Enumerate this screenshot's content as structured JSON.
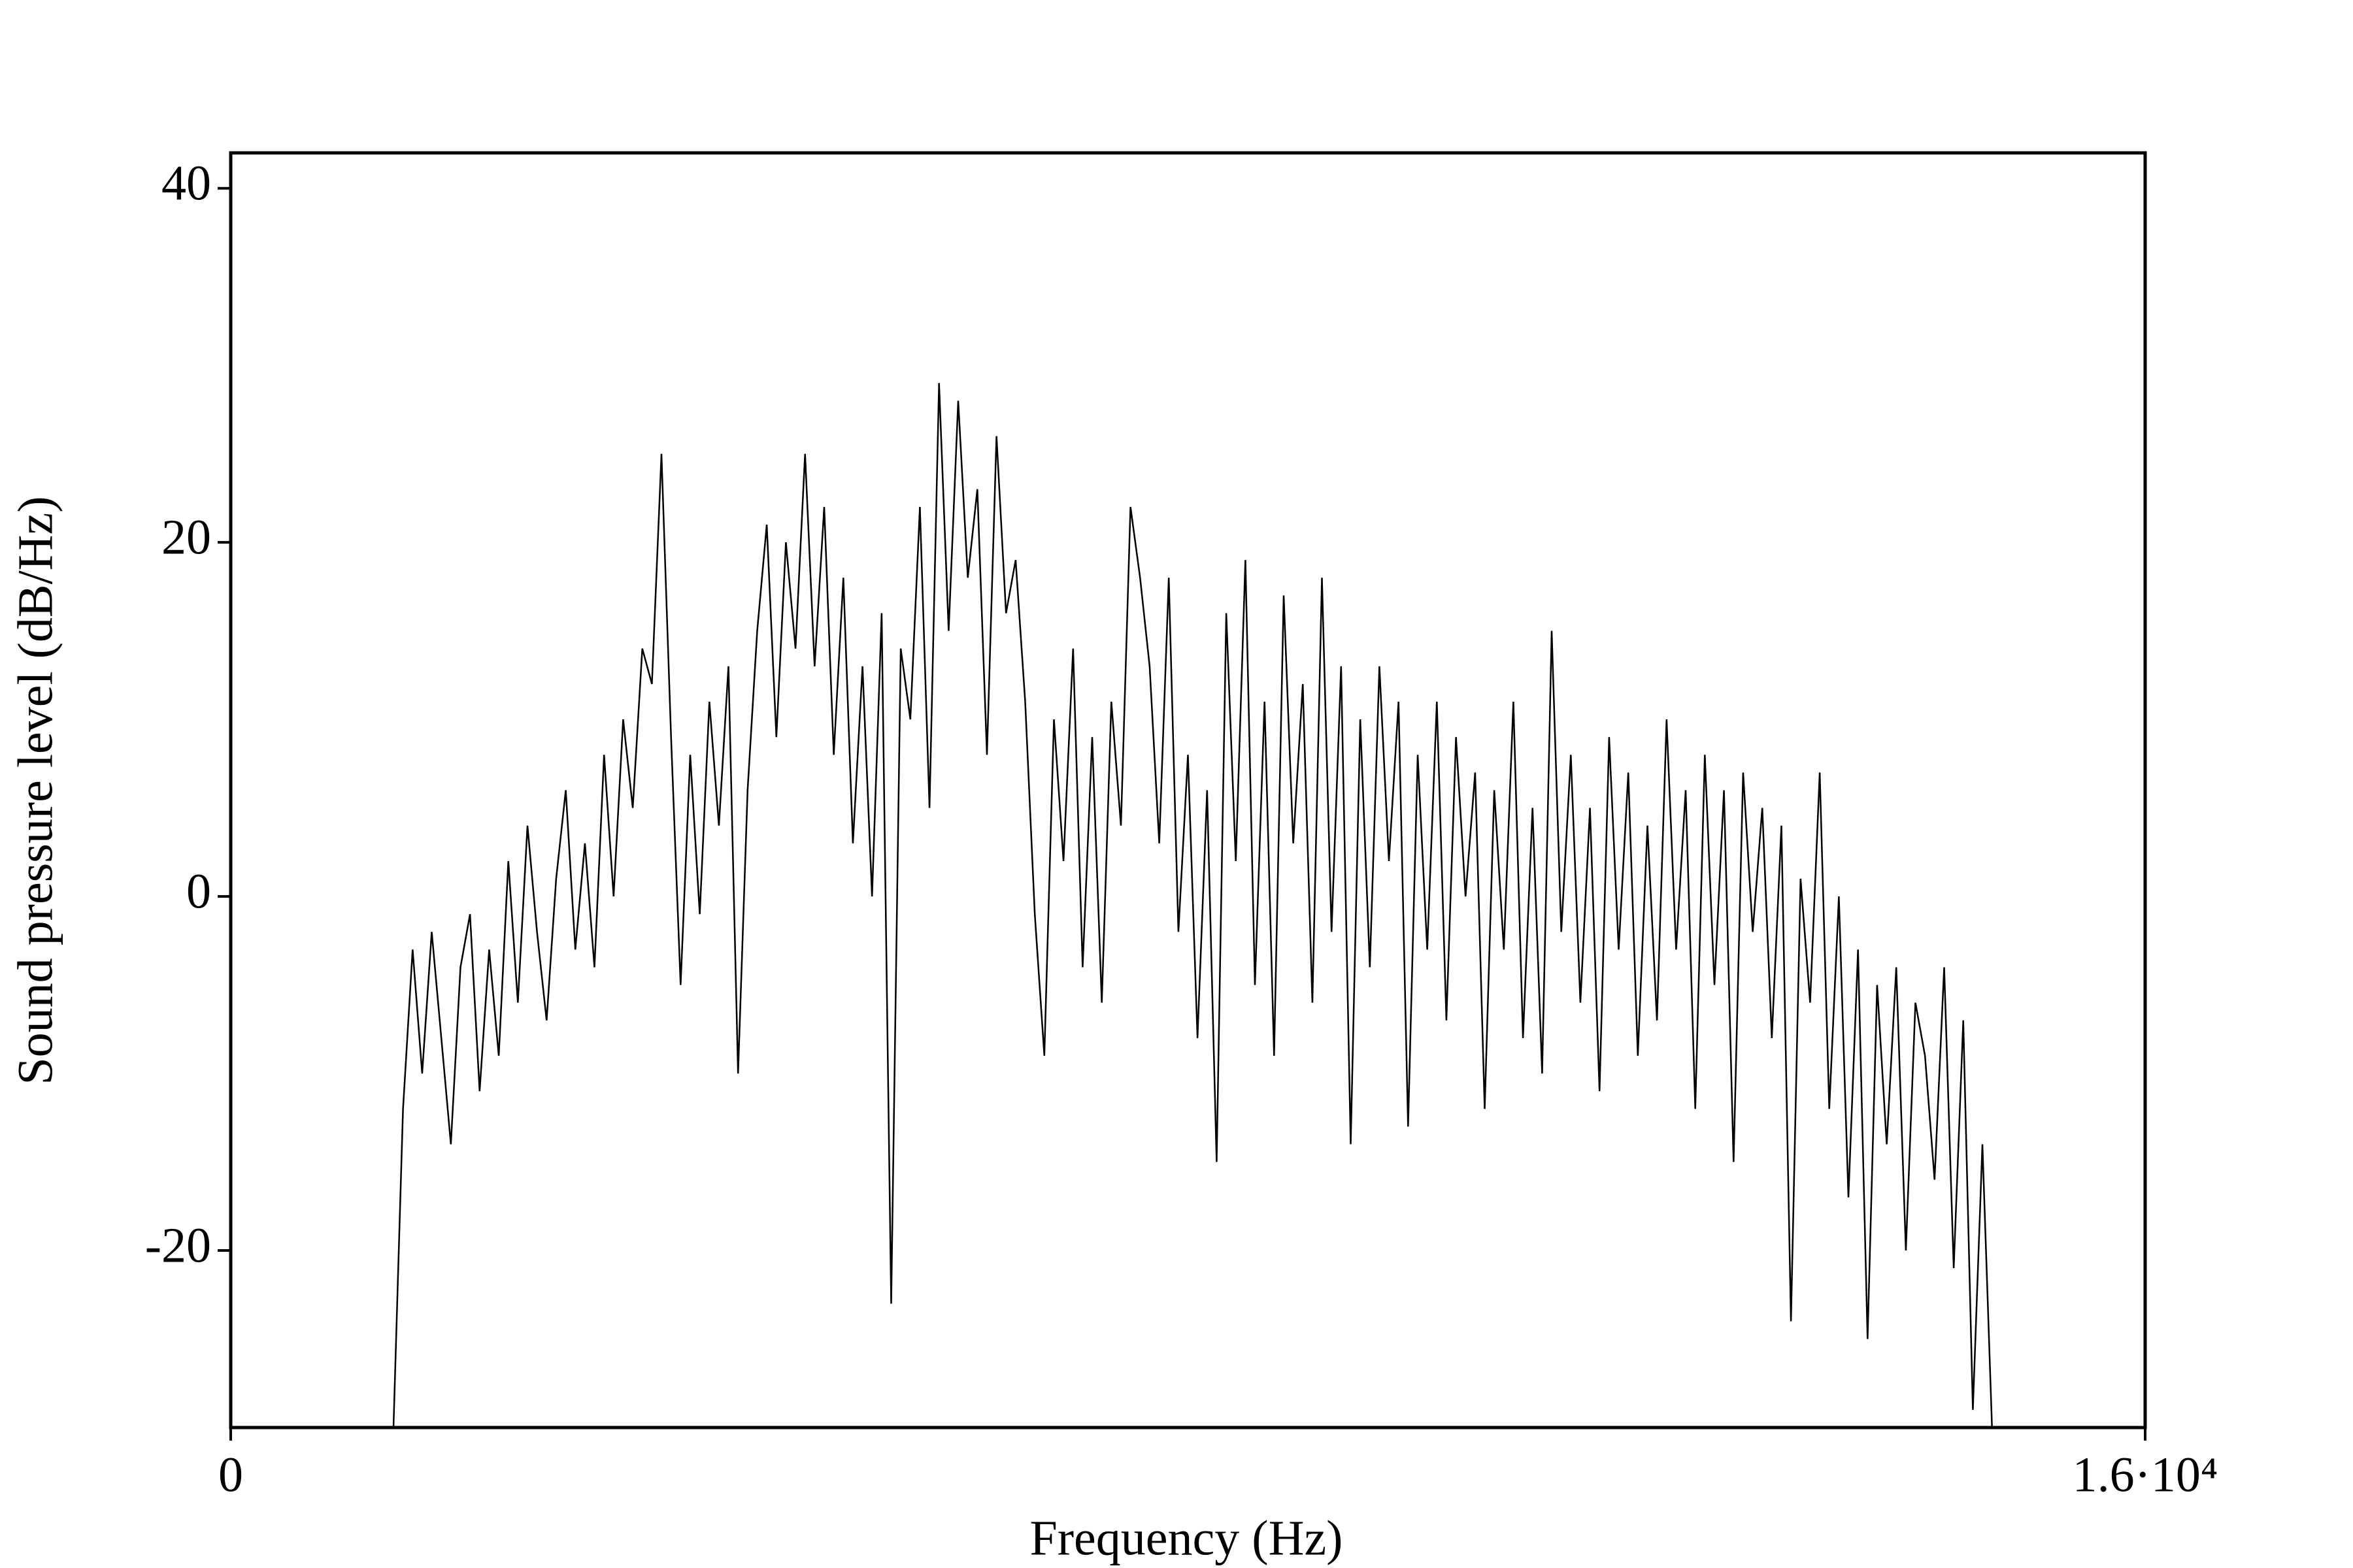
{
  "chart_data": {
    "type": "line",
    "x_label": "Frequency (Hz)",
    "y_label": "Sound pressure level (dB/Hz)",
    "xlim": [
      0,
      16000
    ],
    "xticks": [
      0,
      {
        "value": 16000,
        "label": "1.6·10⁴"
      }
    ],
    "ylim": [
      -30,
      42
    ],
    "yticks": [
      -20,
      0,
      20,
      40
    ],
    "color": "#000000",
    "grid": false,
    "x": [
      1360,
      1440,
      1520,
      1600,
      1680,
      1760,
      1840,
      1920,
      2000,
      2080,
      2160,
      2240,
      2320,
      2400,
      2480,
      2560,
      2640,
      2720,
      2800,
      2880,
      2960,
      3040,
      3120,
      3200,
      3280,
      3360,
      3440,
      3520,
      3600,
      3680,
      3760,
      3840,
      3920,
      4000,
      4080,
      4160,
      4240,
      4320,
      4400,
      4480,
      4560,
      4640,
      4720,
      4800,
      4880,
      4960,
      5040,
      5120,
      5200,
      5280,
      5360,
      5440,
      5520,
      5600,
      5680,
      5760,
      5840,
      5920,
      6000,
      6080,
      6160,
      6240,
      6320,
      6400,
      6480,
      6560,
      6640,
      6720,
      6800,
      6880,
      6960,
      7040,
      7120,
      7200,
      7280,
      7360,
      7440,
      7520,
      7600,
      7680,
      7760,
      7840,
      7920,
      8000,
      8080,
      8160,
      8240,
      8320,
      8400,
      8480,
      8560,
      8640,
      8720,
      8800,
      8880,
      8960,
      9040,
      9120,
      9200,
      9280,
      9360,
      9440,
      9520,
      9600,
      9680,
      9760,
      9840,
      9920,
      10000,
      10080,
      10160,
      10240,
      10320,
      10400,
      10480,
      10560,
      10640,
      10720,
      10800,
      10880,
      10960,
      11040,
      11120,
      11200,
      11280,
      11360,
      11440,
      11520,
      11600,
      11680,
      11760,
      11840,
      11920,
      12000,
      12080,
      12160,
      12240,
      12320,
      12400,
      12480,
      12560,
      12640,
      12720,
      12800,
      12880,
      12960,
      13040,
      13120,
      13200,
      13280,
      13360,
      13440,
      13520,
      13600,
      13680,
      13760,
      13840,
      13920,
      14000,
      14080,
      14160,
      14240,
      14320,
      14400,
      14480,
      14560,
      14640,
      14720
    ],
    "values": [
      -30,
      -12,
      -3,
      -10,
      -2,
      -8,
      -14,
      -4,
      -1,
      -11,
      -3,
      -9,
      2,
      -6,
      4,
      -2,
      -7,
      1,
      6,
      -3,
      3,
      -4,
      8,
      0,
      10,
      5,
      14,
      12,
      25,
      9,
      -5,
      8,
      -1,
      11,
      4,
      13,
      -10,
      6,
      15,
      21,
      9,
      20,
      14,
      25,
      13,
      22,
      8,
      18,
      3,
      13,
      0,
      16,
      -23,
      14,
      10,
      22,
      5,
      29,
      15,
      28,
      18,
      23,
      8,
      26,
      16,
      19,
      11,
      -1,
      -9,
      10,
      2,
      14,
      -4,
      9,
      -6,
      11,
      4,
      22,
      18,
      13,
      3,
      18,
      -2,
      8,
      -8,
      6,
      -15,
      16,
      2,
      19,
      -5,
      11,
      -9,
      17,
      3,
      12,
      -6,
      18,
      -2,
      13,
      -14,
      10,
      -4,
      13,
      2,
      11,
      -13,
      8,
      -3,
      11,
      -7,
      9,
      0,
      7,
      -12,
      6,
      -3,
      11,
      -8,
      5,
      -10,
      15,
      -2,
      8,
      -6,
      5,
      -11,
      9,
      -3,
      7,
      -9,
      4,
      -7,
      10,
      -3,
      6,
      -12,
      8,
      -5,
      6,
      -15,
      7,
      -2,
      5,
      -8,
      4,
      -24,
      1,
      -6,
      7,
      -12,
      0,
      -17,
      -3,
      -25,
      -5,
      -14,
      -4,
      -20,
      -6,
      -9,
      -16,
      -4,
      -21,
      -7,
      -29,
      -14,
      -30
    ]
  }
}
